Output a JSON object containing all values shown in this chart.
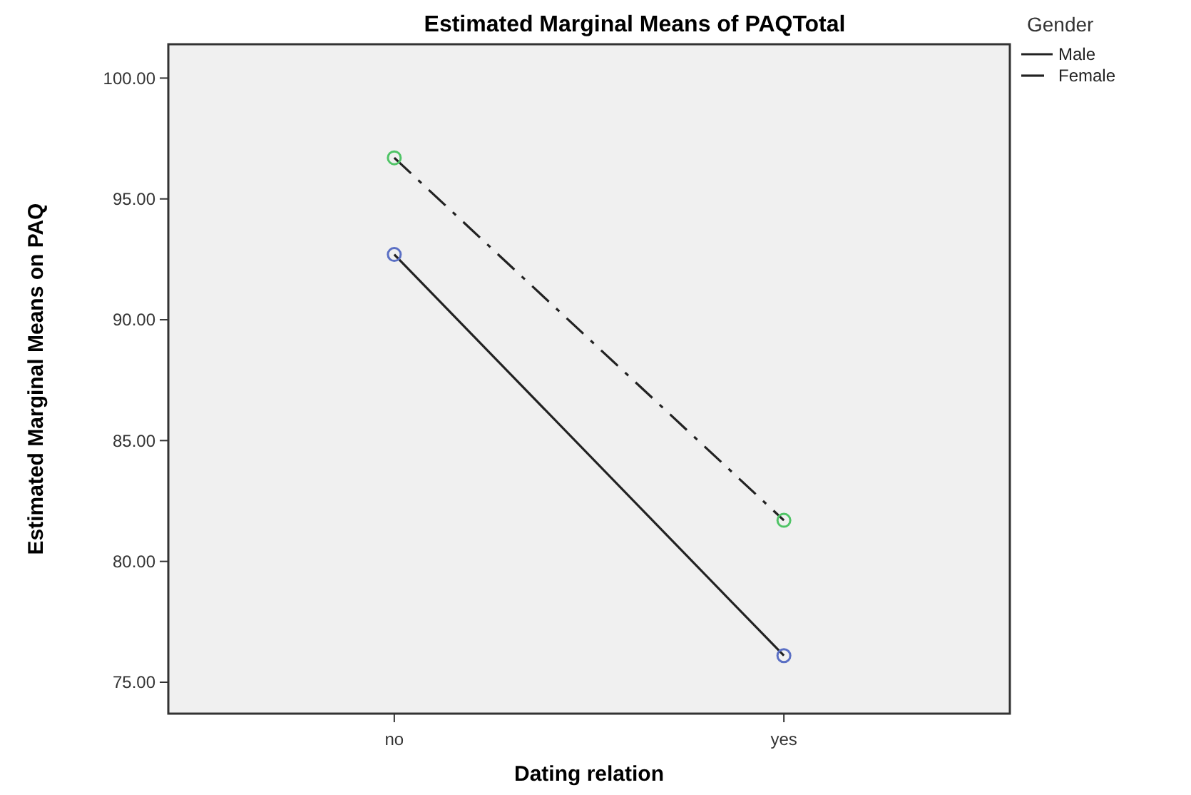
{
  "chart_data": {
    "type": "line",
    "title": "Estimated Marginal Means of PAQTotal",
    "xlabel": "Dating relation",
    "ylabel": "Estimated Marginal Means on PAQ",
    "legend_title": "Gender",
    "categories": [
      "no",
      "yes"
    ],
    "series": [
      {
        "name": "Male",
        "color": "#5a6fc4",
        "values": [
          92.7,
          76.1
        ],
        "line_style": "solid"
      },
      {
        "name": "Female",
        "color": "#4fc466",
        "values": [
          96.7,
          81.7
        ],
        "line_style": "dashed"
      }
    ],
    "ylim": [
      73.7,
      101.4
    ],
    "yticks": [
      {
        "value": 75,
        "label": "75.00"
      },
      {
        "value": 80,
        "label": "80.00"
      },
      {
        "value": 85,
        "label": "85.00"
      },
      {
        "value": 90,
        "label": "90.00"
      },
      {
        "value": 95,
        "label": "95.00"
      },
      {
        "value": 100,
        "label": "100.00"
      }
    ],
    "grid": false,
    "legend": "top right",
    "marker": "circle"
  }
}
